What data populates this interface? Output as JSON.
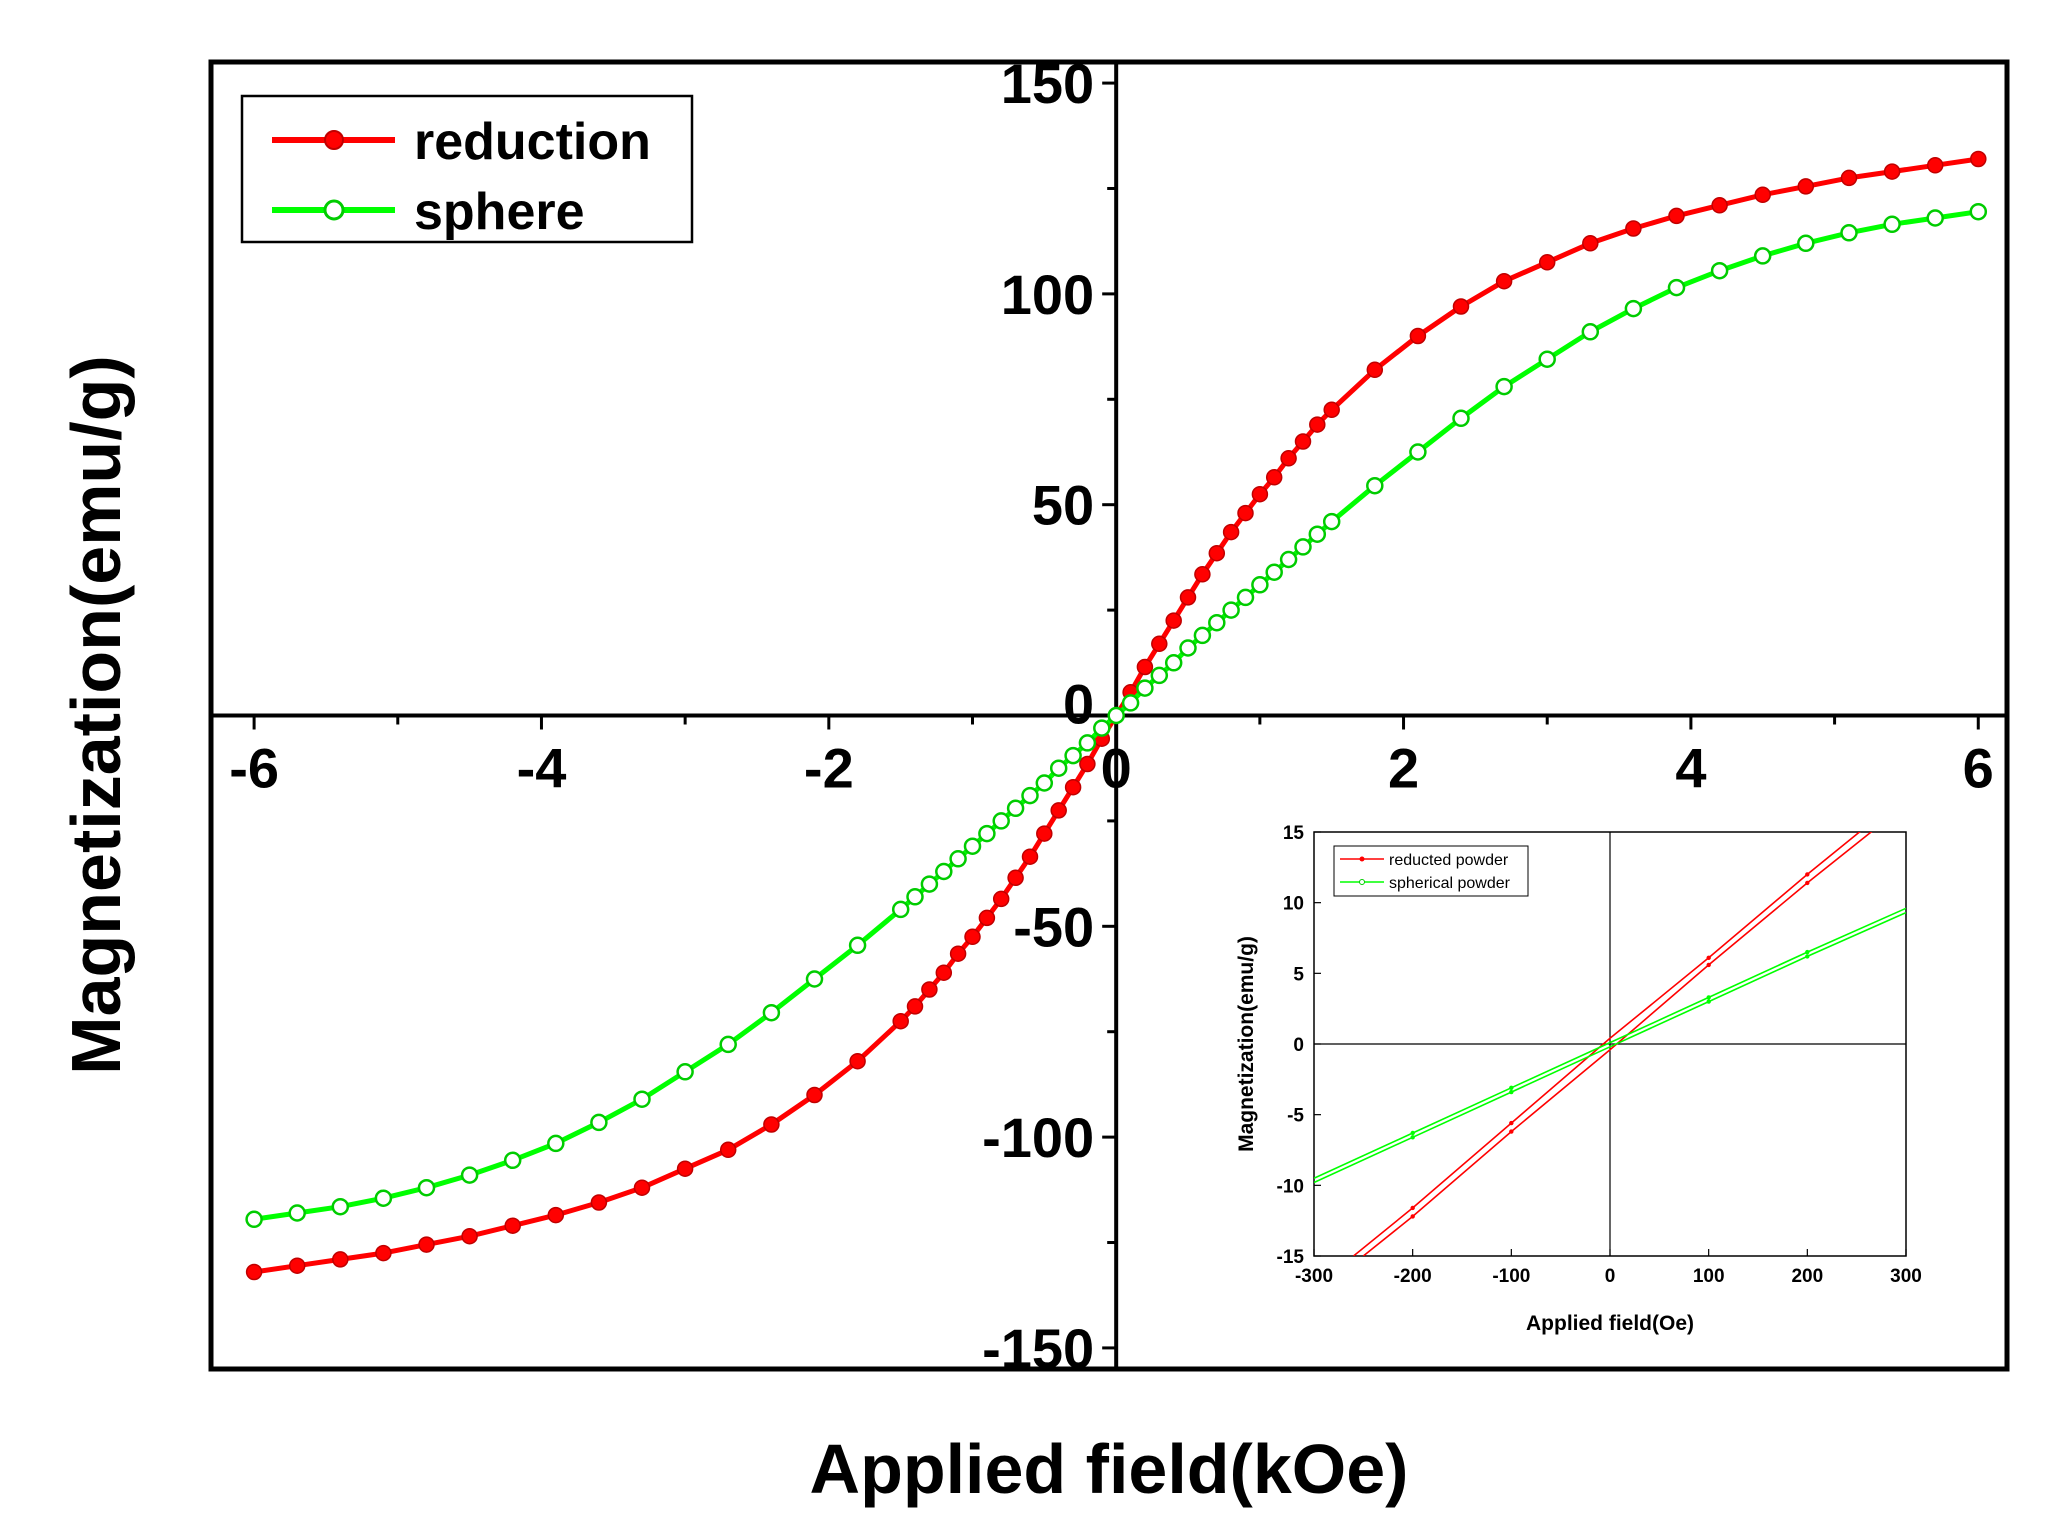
{
  "chart_data": [
    {
      "type": "line",
      "role": "main",
      "title": "",
      "xlabel": "Applied field(kOe)",
      "ylabel": "Magnetization(emu/g)",
      "xlim": [
        -6.3,
        6.2
      ],
      "ylim": [
        -155,
        155
      ],
      "xticks": [
        -6,
        -4,
        -2,
        0,
        2,
        4,
        6
      ],
      "xtick_labels": [
        "-6",
        "-4",
        "-2",
        "0",
        "2",
        "4",
        "6"
      ],
      "yticks": [
        -150,
        -100,
        -50,
        0,
        50,
        100,
        150
      ],
      "ytick_labels": [
        "-150",
        "-100",
        "-50",
        "0",
        "50",
        "100",
        "150"
      ],
      "grid": false,
      "legend_position": "top-left",
      "series": [
        {
          "name": "reduction",
          "color": "#ff0000",
          "marker": "filled-circle",
          "x": [
            -6,
            -5.7,
            -5.4,
            -5.1,
            -4.8,
            -4.5,
            -4.2,
            -3.9,
            -3.6,
            -3.3,
            -3,
            -2.7,
            -2.4,
            -2.1,
            -1.8,
            -1.5,
            -1.4,
            -1.3,
            -1.2,
            -1.1,
            -1,
            -0.9,
            -0.8,
            -0.7,
            -0.6,
            -0.5,
            -0.4,
            -0.3,
            -0.2,
            -0.1,
            0,
            0.1,
            0.2,
            0.3,
            0.4,
            0.5,
            0.6,
            0.7,
            0.8,
            0.9,
            1,
            1.1,
            1.2,
            1.3,
            1.4,
            1.5,
            1.8,
            2.1,
            2.4,
            2.7,
            3,
            3.3,
            3.6,
            3.9,
            4.2,
            4.5,
            4.8,
            5.1,
            5.4,
            5.7,
            6
          ],
          "y": [
            -132,
            -130.5,
            -129,
            -127.5,
            -125.5,
            -123.5,
            -121,
            -118.5,
            -115.5,
            -112,
            -107.5,
            -103,
            -97,
            -90,
            -82,
            -72.5,
            -69,
            -65,
            -61,
            -56.5,
            -52.5,
            -48,
            -43.5,
            -38.5,
            -33.5,
            -28,
            -22.5,
            -17,
            -11.5,
            -5.5,
            0,
            5.5,
            11.5,
            17,
            22.5,
            28,
            33.5,
            38.5,
            43.5,
            48,
            52.5,
            56.5,
            61,
            65,
            69,
            72.5,
            82,
            90,
            97,
            103,
            107.5,
            112,
            115.5,
            118.5,
            121,
            123.5,
            125.5,
            127.5,
            129,
            130.5,
            132
          ]
        },
        {
          "name": "sphere",
          "color": "#00ff00",
          "marker": "open-circle",
          "x": [
            -6,
            -5.7,
            -5.4,
            -5.1,
            -4.8,
            -4.5,
            -4.2,
            -3.9,
            -3.6,
            -3.3,
            -3,
            -2.7,
            -2.4,
            -2.1,
            -1.8,
            -1.5,
            -1.4,
            -1.3,
            -1.2,
            -1.1,
            -1,
            -0.9,
            -0.8,
            -0.7,
            -0.6,
            -0.5,
            -0.4,
            -0.3,
            -0.2,
            -0.1,
            0,
            0.1,
            0.2,
            0.3,
            0.4,
            0.5,
            0.6,
            0.7,
            0.8,
            0.9,
            1,
            1.1,
            1.2,
            1.3,
            1.4,
            1.5,
            1.8,
            2.1,
            2.4,
            2.7,
            3,
            3.3,
            3.6,
            3.9,
            4.2,
            4.5,
            4.8,
            5.1,
            5.4,
            5.7,
            6
          ],
          "y": [
            -119.5,
            -118,
            -116.5,
            -114.5,
            -112,
            -109,
            -105.5,
            -101.5,
            -96.5,
            -91,
            -84.5,
            -78,
            -70.5,
            -62.5,
            -54.5,
            -46,
            -43,
            -40,
            -37,
            -34,
            -31,
            -28,
            -25,
            -22,
            -19,
            -16,
            -12.5,
            -9.5,
            -6.5,
            -3,
            0,
            3,
            6.5,
            9.5,
            12.5,
            16,
            19,
            22,
            25,
            28,
            31,
            34,
            37,
            40,
            43,
            46,
            54.5,
            62.5,
            70.5,
            78,
            84.5,
            91,
            96.5,
            101.5,
            105.5,
            109,
            112,
            114.5,
            116.5,
            118,
            119.5
          ]
        }
      ]
    },
    {
      "type": "line",
      "role": "inset",
      "title": "",
      "xlabel": "Applied field(Oe)",
      "ylabel": "Magnetization(emu/g)",
      "xlim": [
        -300,
        300
      ],
      "ylim": [
        -15,
        15
      ],
      "xticks": [
        -300,
        -200,
        -100,
        0,
        100,
        200,
        300
      ],
      "xtick_labels": [
        "-300",
        "-200",
        "-100",
        "0",
        "100",
        "200",
        "300"
      ],
      "yticks": [
        -15,
        -10,
        -5,
        0,
        5,
        10,
        15
      ],
      "ytick_labels": [
        "-15",
        "-10",
        "-5",
        "0",
        "5",
        "10",
        "15"
      ],
      "grid": false,
      "legend_position": "top-left",
      "series": [
        {
          "name": "reducted powder",
          "color": "#ff0000",
          "marker": "small-dot",
          "branches": [
            {
              "x": [
                -260,
                -200,
                -100,
                0,
                100,
                200,
                260
              ],
              "y": [
                -15,
                -11.6,
                -5.6,
                0.4,
                6.1,
                12,
                15.4
              ]
            },
            {
              "x": [
                -250,
                -200,
                -100,
                0,
                100,
                200,
                270
              ],
              "y": [
                -15,
                -12.2,
                -6.2,
                -0.4,
                5.6,
                11.4,
                15.3
              ]
            }
          ]
        },
        {
          "name": "spherical powder",
          "color": "#00ff00",
          "marker": "small-dot",
          "branches": [
            {
              "x": [
                -300,
                -200,
                -100,
                0,
                100,
                200,
                300
              ],
              "y": [
                -9.5,
                -6.3,
                -3.1,
                0.1,
                3.3,
                6.5,
                9.6
              ]
            },
            {
              "x": [
                -300,
                -200,
                -100,
                0,
                100,
                200,
                300
              ],
              "y": [
                -9.8,
                -6.6,
                -3.4,
                -0.2,
                3.0,
                6.2,
                9.3
              ]
            }
          ]
        }
      ]
    }
  ]
}
